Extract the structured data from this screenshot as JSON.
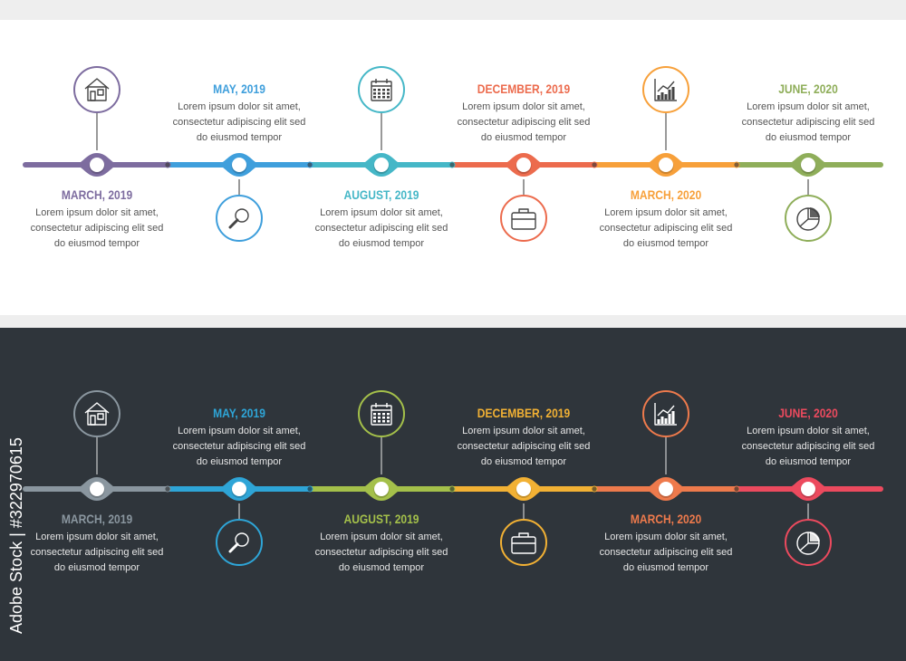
{
  "panels": [
    {
      "theme": "light",
      "line_colors": [
        "#7d6c9f",
        "#3f9fdc",
        "#45b7c7",
        "#ec6b4d",
        "#f7a03a",
        "#8fae5a"
      ],
      "milestones": [
        {
          "date": "MARCH, 2019",
          "text": [
            "Lorem ipsum dolor sit amet,",
            "consectetur adipiscing elit sed",
            "do eiusmod tempor"
          ],
          "icon": "house-icon",
          "icon_side": "top",
          "text_side": "bottom"
        },
        {
          "date": "MAY, 2019",
          "text": [
            "Lorem ipsum dolor sit amet,",
            "consectetur adipiscing elit sed",
            "do eiusmod tempor"
          ],
          "icon": "magnifier-icon",
          "icon_side": "bottom",
          "text_side": "top"
        },
        {
          "date": "AUGUST, 2019",
          "text": [
            "Lorem ipsum dolor sit amet,",
            "consectetur adipiscing elit sed",
            "do eiusmod tempor"
          ],
          "icon": "calendar-icon",
          "icon_side": "top",
          "text_side": "bottom"
        },
        {
          "date": "DECEMBER, 2019",
          "text": [
            "Lorem ipsum dolor sit amet,",
            "consectetur adipiscing elit sed",
            "do eiusmod tempor"
          ],
          "icon": "briefcase-icon",
          "icon_side": "bottom",
          "text_side": "top"
        },
        {
          "date": "MARCH, 2020",
          "text": [
            "Lorem ipsum dolor sit amet,",
            "consectetur adipiscing elit sed",
            "do eiusmod tempor"
          ],
          "icon": "growth-chart-icon",
          "icon_side": "top",
          "text_side": "bottom"
        },
        {
          "date": "JUNE, 2020",
          "text": [
            "Lorem ipsum dolor sit amet,",
            "consectetur adipiscing elit sed",
            "do eiusmod tempor"
          ],
          "icon": "pie-chart-icon",
          "icon_side": "bottom",
          "text_side": "top"
        }
      ]
    },
    {
      "theme": "dark",
      "line_colors": [
        "#8a969f",
        "#2ea5d7",
        "#a4c04a",
        "#f2b134",
        "#ee7a4c",
        "#ec4a5e"
      ],
      "milestones": [
        {
          "date": "MARCH, 2019",
          "text": [
            "Lorem ipsum dolor sit amet,",
            "consectetur adipiscing elit sed",
            "do eiusmod tempor"
          ],
          "icon": "house-icon",
          "icon_side": "top",
          "text_side": "bottom"
        },
        {
          "date": "MAY, 2019",
          "text": [
            "Lorem ipsum dolor sit amet,",
            "consectetur adipiscing elit sed",
            "do eiusmod tempor"
          ],
          "icon": "magnifier-icon",
          "icon_side": "bottom",
          "text_side": "top"
        },
        {
          "date": "AUGUST, 2019",
          "text": [
            "Lorem ipsum dolor sit amet,",
            "consectetur adipiscing elit sed",
            "do eiusmod tempor"
          ],
          "icon": "calendar-icon",
          "icon_side": "top",
          "text_side": "bottom"
        },
        {
          "date": "DECEMBER, 2019",
          "text": [
            "Lorem ipsum dolor sit amet,",
            "consectetur adipiscing elit sed",
            "do eiusmod tempor"
          ],
          "icon": "briefcase-icon",
          "icon_side": "bottom",
          "text_side": "top"
        },
        {
          "date": "MARCH, 2020",
          "text": [
            "Lorem ipsum dolor sit amet,",
            "consectetur adipiscing elit sed",
            "do eiusmod tempor"
          ],
          "icon": "growth-chart-icon",
          "icon_side": "top",
          "text_side": "bottom"
        },
        {
          "date": "JUNE, 2020",
          "text": [
            "Lorem ipsum dolor sit amet,",
            "consectetur adipiscing elit sed",
            "do eiusmod tempor"
          ],
          "icon": "pie-chart-icon",
          "icon_side": "bottom",
          "text_side": "top"
        }
      ]
    }
  ],
  "watermark": {
    "text": "#322970615",
    "brand": "Adobe Stock",
    "separator": "|"
  }
}
